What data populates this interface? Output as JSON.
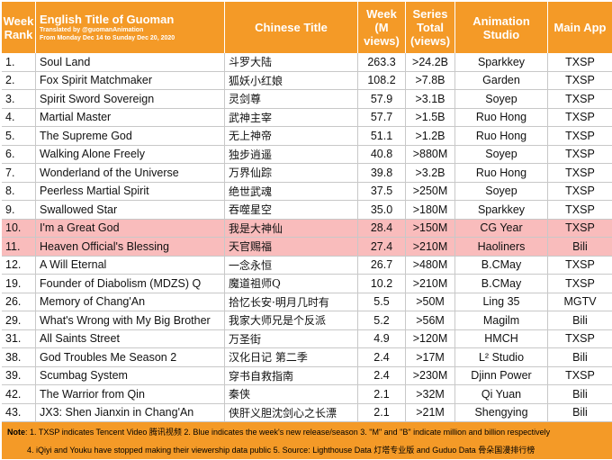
{
  "header": {
    "rank": "Week Rank",
    "english": "English Title of Guoman",
    "credit1": "Translated by @guomanAnimation",
    "credit2": "From Monday Dec 14 to Sunday Dec 20, 2020",
    "chinese": "Chinese Title",
    "week": "Week (M views)",
    "total": "Series Total (views)",
    "studio": "Animation Studio",
    "app": "Main App"
  },
  "rows": [
    {
      "rank": "1.",
      "english": "Soul Land",
      "chinese": "斗罗大陆",
      "week": "263.3",
      "total": ">24.2B",
      "studio": "Sparkkey",
      "app": "TXSP",
      "highlight": false
    },
    {
      "rank": "2.",
      "english": "Fox Spirit Matchmaker",
      "chinese": "狐妖小红娘",
      "week": "108.2",
      "total": ">7.8B",
      "studio": "Garden",
      "app": "TXSP",
      "highlight": false
    },
    {
      "rank": "3.",
      "english": "Spirit Sword Sovereign",
      "chinese": "灵剑尊",
      "week": "57.9",
      "total": ">3.1B",
      "studio": "Soyep",
      "app": "TXSP",
      "highlight": false
    },
    {
      "rank": "4.",
      "english": "Martial Master",
      "chinese": "武神主宰",
      "week": "57.7",
      "total": ">1.5B",
      "studio": "Ruo Hong",
      "app": "TXSP",
      "highlight": false
    },
    {
      "rank": "5.",
      "english": "The Supreme God",
      "chinese": "无上神帝",
      "week": "51.1",
      "total": ">1.2B",
      "studio": "Ruo Hong",
      "app": "TXSP",
      "highlight": false
    },
    {
      "rank": "6.",
      "english": "Walking Alone Freely",
      "chinese": "独步逍遥",
      "week": "40.8",
      "total": ">880M",
      "studio": "Soyep",
      "app": "TXSP",
      "highlight": false
    },
    {
      "rank": "7.",
      "english": "Wonderland of the Universe",
      "chinese": "万界仙踪",
      "week": "39.8",
      "total": ">3.2B",
      "studio": "Ruo Hong",
      "app": "TXSP",
      "highlight": false
    },
    {
      "rank": "8.",
      "english": "Peerless Martial Spirit",
      "chinese": "绝世武魂",
      "week": "37.5",
      "total": ">250M",
      "studio": "Soyep",
      "app": "TXSP",
      "highlight": false
    },
    {
      "rank": "9.",
      "english": "Swallowed Star",
      "chinese": "吞噬星空",
      "week": "35.0",
      "total": ">180M",
      "studio": "Sparkkey",
      "app": "TXSP",
      "highlight": false
    },
    {
      "rank": "10.",
      "english": "I'm a Great God",
      "chinese": "我是大神仙",
      "week": "28.4",
      "total": ">150M",
      "studio": "CG Year",
      "app": "TXSP",
      "highlight": true
    },
    {
      "rank": "11.",
      "english": "Heaven Official's Blessing",
      "chinese": "天官赐福",
      "week": "27.4",
      "total": ">210M",
      "studio": "Haoliners",
      "app": "Bili",
      "highlight": true
    },
    {
      "rank": "12.",
      "english": "A Will Eternal",
      "chinese": "一念永恒",
      "week": "26.7",
      "total": ">480M",
      "studio": "B.CMay",
      "app": "TXSP",
      "highlight": false
    },
    {
      "rank": "19.",
      "english": "Founder of Diabolism (MDZS) Q",
      "chinese": "魔道祖师Q",
      "week": "10.2",
      "total": ">210M",
      "studio": "B.CMay",
      "app": "TXSP",
      "highlight": false
    },
    {
      "rank": "26.",
      "english": "Memory of Chang'An",
      "chinese": "拾忆长安·明月几时有",
      "week": "5.5",
      "total": ">50M",
      "studio": "Ling 35",
      "app": "MGTV",
      "highlight": false
    },
    {
      "rank": "29.",
      "english": "What's Wrong with My Big Brother",
      "chinese": "我家大师兄是个反派",
      "week": "5.2",
      "total": ">56M",
      "studio": "Magilm",
      "app": "Bili",
      "highlight": false
    },
    {
      "rank": "31.",
      "english": "All Saints Street",
      "chinese": "万圣街",
      "week": "4.9",
      "total": ">120M",
      "studio": "HMCH",
      "app": "TXSP",
      "highlight": false
    },
    {
      "rank": "38.",
      "english": "God Troubles Me Season 2",
      "chinese": "汉化日记 第二季",
      "week": "2.4",
      "total": ">17M",
      "studio": "L² Studio",
      "app": "Bili",
      "highlight": false
    },
    {
      "rank": "39.",
      "english": "Scumbag System",
      "chinese": "穿书自救指南",
      "week": "2.4",
      "total": ">230M",
      "studio": "Djinn Power",
      "app": "TXSP",
      "highlight": false
    },
    {
      "rank": "42.",
      "english": "The Warrior from Qin",
      "chinese": "秦侠",
      "week": "2.1",
      "total": ">32M",
      "studio": "Qi Yuan",
      "app": "Bili",
      "highlight": false
    },
    {
      "rank": "43.",
      "english": "JX3: Shen Jianxin in Chang'An",
      "chinese": "侠肝义胆沈剑心之长漂",
      "week": "2.1",
      "total": ">21M",
      "studio": "Shengying",
      "app": "Bili",
      "highlight": false
    }
  ],
  "notes": {
    "label": "Note",
    "line1": ": 1. TXSP indicates Tencent Video 腾讯视频    2. Blue indicates the week's new release/season    3. \"M\" and \"B\" indicate million and billion respectively",
    "line2": "4. iQiyi and Youku have stopped making their viewership data public    5. Source: Lighthouse Data 灯塔专业版 and Guduo Data 骨朵国漫排行榜"
  },
  "colors": {
    "header_bg": "#f49a27",
    "highlight_row": "#f9bcbc",
    "grid": "#c8c8c8"
  }
}
